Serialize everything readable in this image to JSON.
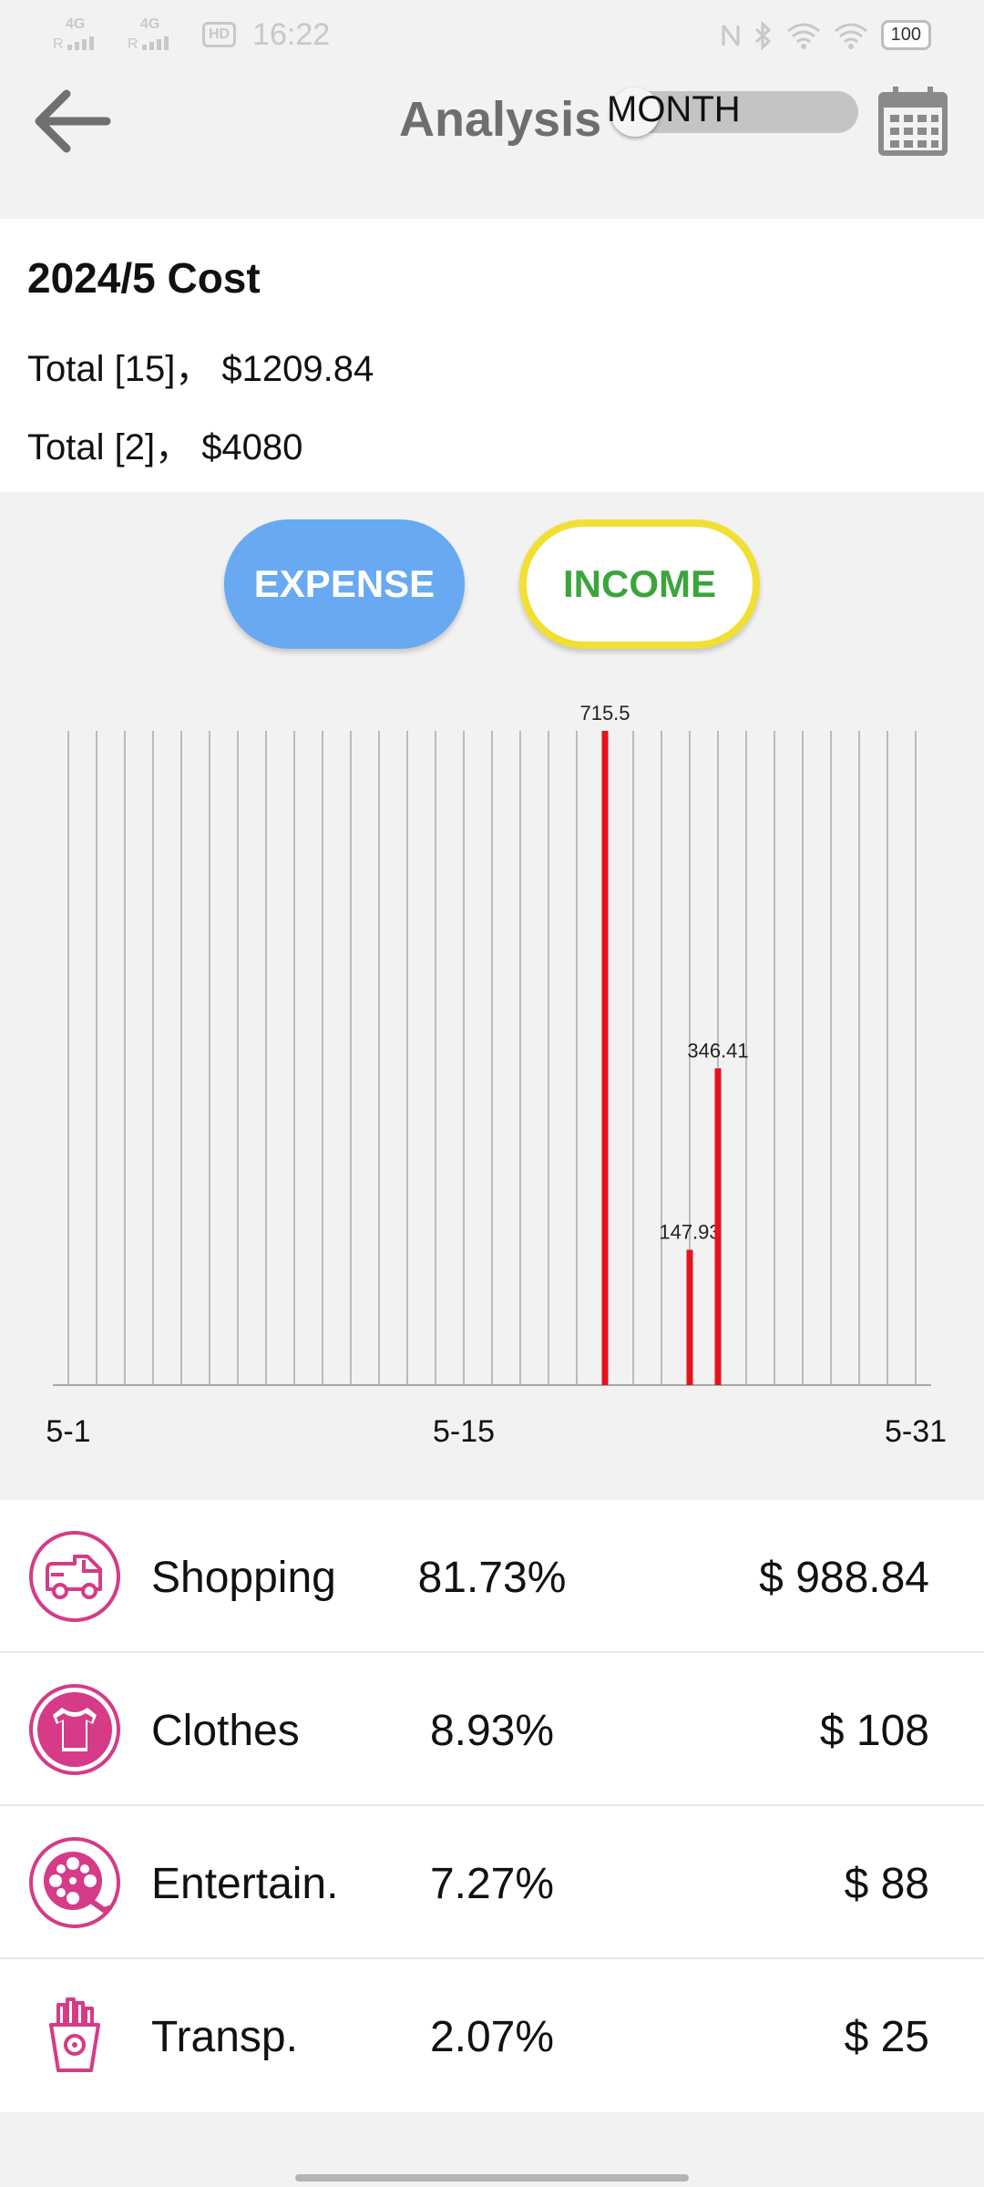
{
  "status_bar": {
    "network1": "4G",
    "network2": "4G",
    "roaming": "R",
    "hd": "HD",
    "time": "16:22",
    "battery": "100"
  },
  "header": {
    "title": "Analysis",
    "toggle_label": "MONTH"
  },
  "summary": {
    "title": "2024/5 Cost",
    "line1": "Total [15]， $1209.84",
    "line2": "Total [2]， $4080"
  },
  "buttons": {
    "expense": "EXPENSE",
    "income": "INCOME"
  },
  "colors": {
    "expense_button": "#68a9f1",
    "income_text": "#3ba53b",
    "income_border": "#f0e034",
    "bar": "#e8121c",
    "category_icon": "#d53b87"
  },
  "chart_data": {
    "type": "bar",
    "x_start_day": 1,
    "x_end_day": 31,
    "tick_labels": [
      {
        "day": 1,
        "label": "5-1"
      },
      {
        "day": 15,
        "label": "5-15"
      },
      {
        "day": 31,
        "label": "5-31"
      }
    ],
    "bars": [
      {
        "day": 20,
        "value": 715.5,
        "label": "715.5"
      },
      {
        "day": 23,
        "value": 147.93,
        "label": "147.93"
      },
      {
        "day": 24,
        "value": 346.41,
        "label": "346.41"
      }
    ],
    "ylim": [
      0,
      715.5
    ],
    "grid": true
  },
  "categories": [
    {
      "name": "Shopping",
      "percent": "81.73%",
      "amount": "$ 988.84",
      "icon": "delivery-truck-icon"
    },
    {
      "name": "Clothes",
      "percent": "8.93%",
      "amount": "$ 108",
      "icon": "tshirt-icon"
    },
    {
      "name": "Entertain.",
      "percent": "7.27%",
      "amount": "$ 88",
      "icon": "film-reel-icon"
    },
    {
      "name": "Transp.",
      "percent": "2.07%",
      "amount": "$ 25",
      "icon": "fries-icon"
    }
  ]
}
